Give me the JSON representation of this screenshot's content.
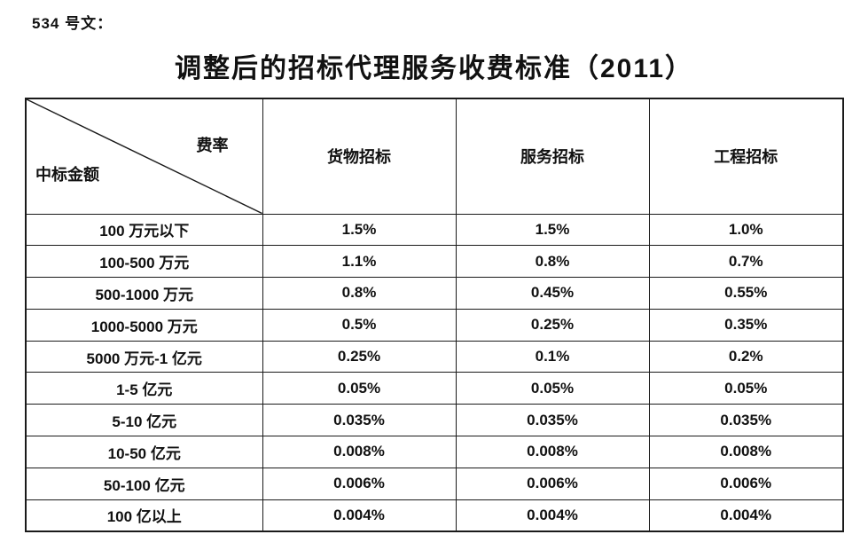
{
  "page": {
    "doc_label": "534 号文：",
    "title": "调整后的招标代理服务收费标准（2011）"
  },
  "table": {
    "corner": {
      "top_right": "费率",
      "bottom_left": "中标金额"
    },
    "columns": [
      "货物招标",
      "服务招标",
      "工程招标"
    ],
    "rows": [
      {
        "label": "100 万元以下",
        "values": [
          "1.5%",
          "1.5%",
          "1.0%"
        ]
      },
      {
        "label": "100-500 万元",
        "values": [
          "1.1%",
          "0.8%",
          "0.7%"
        ]
      },
      {
        "label": "500-1000 万元",
        "values": [
          "0.8%",
          "0.45%",
          "0.55%"
        ]
      },
      {
        "label": "1000-5000 万元",
        "values": [
          "0.5%",
          "0.25%",
          "0.35%"
        ]
      },
      {
        "label": "5000 万元-1 亿元",
        "values": [
          "0.25%",
          "0.1%",
          "0.2%"
        ]
      },
      {
        "label": "1-5 亿元",
        "values": [
          "0.05%",
          "0.05%",
          "0.05%"
        ]
      },
      {
        "label": "5-10 亿元",
        "values": [
          "0.035%",
          "0.035%",
          "0.035%"
        ]
      },
      {
        "label": "10-50 亿元",
        "values": [
          "0.008%",
          "0.008%",
          "0.008%"
        ]
      },
      {
        "label": "50-100 亿元",
        "values": [
          "0.006%",
          "0.006%",
          "0.006%"
        ]
      },
      {
        "label": "100 亿以上",
        "values": [
          "0.004%",
          "0.004%",
          "0.004%"
        ]
      }
    ]
  }
}
